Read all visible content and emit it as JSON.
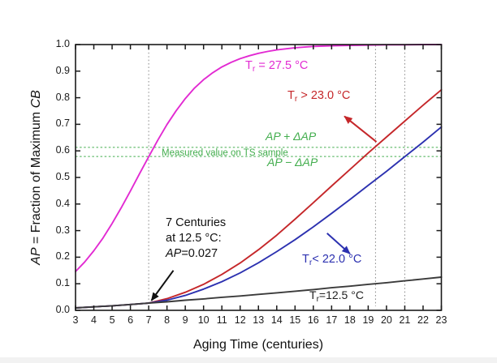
{
  "page": {
    "background": "#ffffff"
  },
  "colors": {
    "magenta": "#e22ad2",
    "red": "#c5272a",
    "blue": "#2c31b0",
    "black_curve": "#3b3b3b",
    "green": "#42ad4d",
    "axis": "#1a1a1a",
    "ref_gray": "#8a8a8a"
  },
  "axis_labels": {
    "xlabel": "Aging Time (centuries)",
    "ylabel_ap": "AP",
    "ylabel_mid": " = Fraction of Maximum ",
    "ylabel_cb": "CB"
  },
  "curve_labels": {
    "magenta": {
      "t": "T",
      "sub": "r",
      "rest": " = 27.5 °C"
    },
    "red": {
      "t": "T",
      "sub": "r",
      "rest": " > 23.0 °C"
    },
    "blue": {
      "t": "T",
      "sub": "r",
      "rest": "< 22.0 °C"
    },
    "black": {
      "t": "T",
      "sub": "r",
      "rest": "=12.5 °C"
    }
  },
  "band_labels": {
    "upper": "AP + ΔAP",
    "measured": "Measured value on TS sample",
    "lower": "AP − ΔAP"
  },
  "annotation": {
    "line1": "7 Centuries",
    "line2": "at 12.5 °C:",
    "ap": "AP",
    "value": "=0.027"
  },
  "chart_data": {
    "type": "line",
    "xlabel": "Aging Time (centuries)",
    "ylabel": "AP = Fraction of Maximum CB",
    "xlim": [
      3,
      23
    ],
    "ylim": [
      0.0,
      1.0
    ],
    "xticks": [
      3,
      4,
      5,
      6,
      7,
      8,
      9,
      10,
      11,
      12,
      13,
      14,
      15,
      16,
      17,
      18,
      19,
      20,
      21,
      22,
      23
    ],
    "yticks": [
      0.0,
      0.1,
      0.2,
      0.3,
      0.4,
      0.5,
      0.6,
      0.7,
      0.8,
      0.9,
      1.0
    ],
    "grid": false,
    "legend": "none (labels annotated on plot)",
    "series": [
      {
        "name": "Tr = 27.5 °C",
        "color": "#e22ad2",
        "x": [
          3,
          3.5,
          4,
          4.5,
          5,
          5.5,
          6,
          6.5,
          7,
          7.5,
          8,
          8.5,
          9,
          9.5,
          10,
          10.5,
          11,
          11.5,
          12,
          12.5,
          13,
          13.5,
          14,
          15,
          16,
          17,
          18,
          19,
          20,
          21,
          22,
          23
        ],
        "y": [
          0.146,
          0.182,
          0.224,
          0.272,
          0.327,
          0.386,
          0.449,
          0.514,
          0.578,
          0.641,
          0.699,
          0.751,
          0.797,
          0.836,
          0.868,
          0.894,
          0.916,
          0.933,
          0.947,
          0.958,
          0.967,
          0.974,
          0.98,
          0.988,
          0.993,
          0.995,
          0.997,
          0.998,
          0.999,
          0.999,
          1.0,
          1.0
        ]
      },
      {
        "name": "Tr > 23.0 °C",
        "color": "#c5272a",
        "x": [
          3,
          4,
          5,
          6,
          7,
          8,
          9,
          10,
          11,
          12,
          13,
          14,
          15,
          16,
          17,
          18,
          19,
          20,
          21,
          22,
          23
        ],
        "y": [
          0.009,
          0.013,
          0.017,
          0.022,
          0.027,
          0.044,
          0.068,
          0.098,
          0.135,
          0.178,
          0.228,
          0.283,
          0.343,
          0.405,
          0.468,
          0.53,
          0.592,
          0.652,
          0.712,
          0.772,
          0.83
        ]
      },
      {
        "name": "Tr < 22.0 °C",
        "color": "#2c31b0",
        "x": [
          3,
          4,
          5,
          6,
          7,
          8,
          9,
          10,
          11,
          12,
          13,
          14,
          15,
          16,
          17,
          18,
          19,
          20,
          21,
          22,
          23
        ],
        "y": [
          0.009,
          0.013,
          0.017,
          0.022,
          0.027,
          0.038,
          0.056,
          0.08,
          0.108,
          0.141,
          0.179,
          0.221,
          0.266,
          0.314,
          0.365,
          0.417,
          0.47,
          0.523,
          0.578,
          0.633,
          0.69
        ]
      },
      {
        "name": "Tr = 12.5 °C",
        "color": "#3b3b3b",
        "x": [
          3,
          4,
          5,
          6,
          7,
          8,
          9,
          10,
          11,
          12,
          13,
          14,
          15,
          16,
          17,
          18,
          19,
          20,
          21,
          22,
          23
        ],
        "y": [
          0.009,
          0.013,
          0.017,
          0.022,
          0.027,
          0.032,
          0.038,
          0.043,
          0.049,
          0.054,
          0.06,
          0.066,
          0.072,
          0.078,
          0.085,
          0.091,
          0.098,
          0.104,
          0.111,
          0.118,
          0.125
        ]
      }
    ],
    "reference_lines_horizontal": [
      {
        "y": 0.613,
        "label": "AP + ΔAP",
        "color": "#42ad4d",
        "style": "dashed"
      },
      {
        "y": 0.579,
        "label": "AP − ΔAP",
        "color": "#42ad4d",
        "style": "dashed"
      }
    ],
    "reference_lines_vertical": [
      {
        "x": 7,
        "color": "#8a8a8a",
        "style": "dotted"
      },
      {
        "x": 19.4,
        "color": "#8a8a8a",
        "style": "dotted"
      },
      {
        "x": 21,
        "color": "#8a8a8a",
        "style": "dotted"
      }
    ],
    "annotations": [
      {
        "text": "7 Centuries at 12.5 °C: AP=0.027",
        "points_to": {
          "x": 7,
          "y": 0.027
        }
      },
      {
        "text": "Measured value on TS sample",
        "y": 0.596
      }
    ],
    "arrows": [
      {
        "name": "annotation-arrow",
        "color": "#111111",
        "from": [
          8.35,
          0.15
        ],
        "to": [
          7.15,
          0.037
        ]
      },
      {
        "name": "red-curve-arrow",
        "color": "#c5272a",
        "from": [
          19.45,
          0.634
        ],
        "to": [
          17.7,
          0.73
        ]
      },
      {
        "name": "blue-curve-arrow",
        "color": "#2c31b0",
        "from": [
          16.75,
          0.29
        ],
        "to": [
          18.0,
          0.213
        ]
      }
    ]
  }
}
